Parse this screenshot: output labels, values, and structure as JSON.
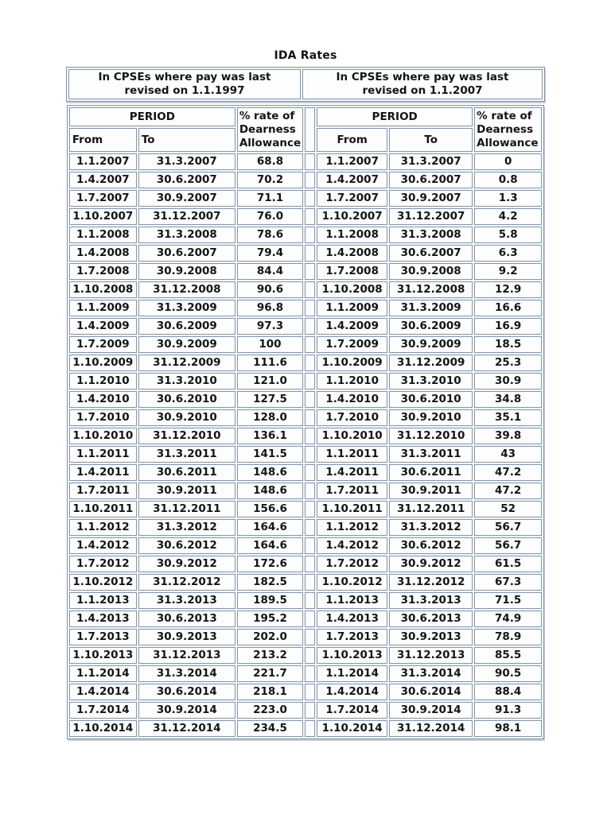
{
  "document": {
    "title": "IDA Rates",
    "banner": {
      "left": {
        "line1": "In CPSEs where pay was last",
        "line2": "revised on 1.1.1997"
      },
      "right": {
        "line1": "In CPSEs where pay was last",
        "line2": "revised on 1.1.2007"
      }
    },
    "table": {
      "headers": {
        "period": "PERIOD",
        "from": "From",
        "to": "To",
        "rate": "% rate of Dearness Allowance"
      },
      "rows": [
        [
          "1.1.2007",
          "31.3.2007",
          "68.8",
          "1.1.2007",
          "31.3.2007",
          "0"
        ],
        [
          "1.4.2007",
          "30.6.2007",
          "70.2",
          "1.4.2007",
          "30.6.2007",
          "0.8"
        ],
        [
          "1.7.2007",
          "30.9.2007",
          "71.1",
          "1.7.2007",
          "30.9.2007",
          "1.3"
        ],
        [
          "1.10.2007",
          "31.12.2007",
          "76.0",
          "1.10.2007",
          "31.12.2007",
          "4.2"
        ],
        [
          "1.1.2008",
          "31.3.2008",
          "78.6",
          "1.1.2008",
          "31.3.2008",
          "5.8"
        ],
        [
          "1.4.2008",
          "30.6.2007",
          "79.4",
          "1.4.2008",
          "30.6.2007",
          "6.3"
        ],
        [
          "1.7.2008",
          "30.9.2008",
          "84.4",
          "1.7.2008",
          "30.9.2008",
          "9.2"
        ],
        [
          "1.10.2008",
          "31.12.2008",
          "90.6",
          "1.10.2008",
          "31.12.2008",
          "12.9"
        ],
        [
          "1.1.2009",
          "31.3.2009",
          "96.8",
          "1.1.2009",
          "31.3.2009",
          "16.6"
        ],
        [
          "1.4.2009",
          "30.6.2009",
          "97.3",
          "1.4.2009",
          "30.6.2009",
          "16.9"
        ],
        [
          "1.7.2009",
          "30.9.2009",
          "100",
          "1.7.2009",
          "30.9.2009",
          "18.5"
        ],
        [
          "1.10.2009",
          "31.12.2009",
          "111.6",
          "1.10.2009",
          "31.12.2009",
          "25.3"
        ],
        [
          "1.1.2010",
          "31.3.2010",
          "121.0",
          "1.1.2010",
          "31.3.2010",
          "30.9"
        ],
        [
          "1.4.2010",
          "30.6.2010",
          "127.5",
          "1.4.2010",
          "30.6.2010",
          "34.8"
        ],
        [
          "1.7.2010",
          "30.9.2010",
          "128.0",
          "1.7.2010",
          "30.9.2010",
          "35.1"
        ],
        [
          "1.10.2010",
          "31.12.2010",
          "136.1",
          "1.10.2010",
          "31.12.2010",
          "39.8"
        ],
        [
          "1.1.2011",
          "31.3.2011",
          "141.5",
          "1.1.2011",
          "31.3.2011",
          "43"
        ],
        [
          "1.4.2011",
          "30.6.2011",
          "148.6",
          "1.4.2011",
          "30.6.2011",
          "47.2"
        ],
        [
          "1.7.2011",
          "30.9.2011",
          "148.6",
          "1.7.2011",
          "30.9.2011",
          "47.2"
        ],
        [
          "1.10.2011",
          "31.12.2011",
          "156.6",
          "1.10.2011",
          "31.12.2011",
          "52"
        ],
        [
          "1.1.2012",
          "31.3.2012",
          "164.6",
          "1.1.2012",
          "31.3.2012",
          "56.7"
        ],
        [
          "1.4.2012",
          "30.6.2012",
          "164.6",
          "1.4.2012",
          "30.6.2012",
          "56.7"
        ],
        [
          "1.7.2012",
          "30.9.2012",
          "172.6",
          "1.7.2012",
          "30.9.2012",
          "61.5"
        ],
        [
          "1.10.2012",
          "31.12.2012",
          "182.5",
          "1.10.2012",
          "31.12.2012",
          "67.3"
        ],
        [
          "1.1.2013",
          "31.3.2013",
          "189.5",
          "1.1.2013",
          "31.3.2013",
          "71.5"
        ],
        [
          "1.4.2013",
          "30.6.2013",
          "195.2",
          "1.4.2013",
          "30.6.2013",
          "74.9"
        ],
        [
          "1.7.2013",
          "30.9.2013",
          "202.0",
          "1.7.2013",
          "30.9.2013",
          "78.9"
        ],
        [
          "1.10.2013",
          "31.12.2013",
          "213.2",
          "1.10.2013",
          "31.12.2013",
          "85.5"
        ],
        [
          "1.1.2014",
          "31.3.2014",
          "221.7",
          "1.1.2014",
          "31.3.2014",
          "90.5"
        ],
        [
          "1.4.2014",
          "30.6.2014",
          "218.1",
          "1.4.2014",
          "30.6.2014",
          "88.4"
        ],
        [
          "1.7.2014",
          "30.9.2014",
          "223.0",
          "1.7.2014",
          "30.9.2014",
          "91.3"
        ],
        [
          "1.10.2014",
          "31.12.2014",
          "234.5",
          "1.10.2014",
          "31.12.2014",
          "98.1"
        ]
      ]
    },
    "colors": {
      "border": "#8095af",
      "border_outer": "#7e92ac",
      "text": "#141414",
      "page_bg": "#ffffff"
    }
  }
}
